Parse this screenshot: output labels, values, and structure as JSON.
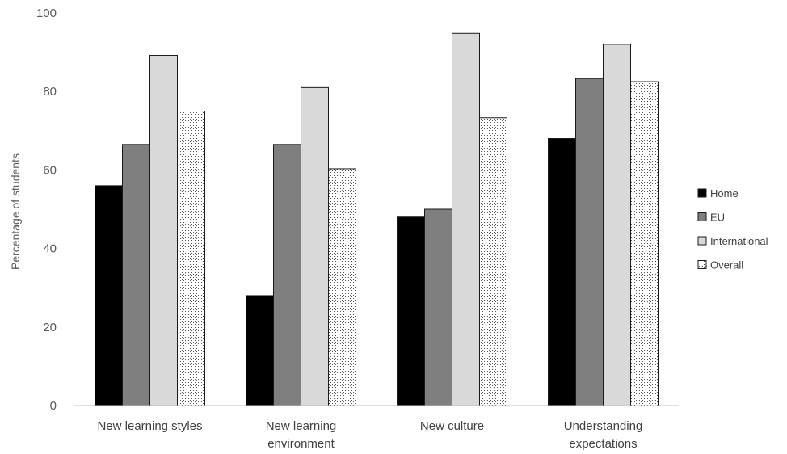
{
  "chart_data": {
    "type": "bar",
    "title": "",
    "xlabel": "",
    "ylabel": "Percentage of students",
    "ylim": [
      0,
      100
    ],
    "yticks": [
      0,
      20,
      40,
      60,
      80,
      100
    ],
    "grid": false,
    "legend_position": "right",
    "categories": [
      [
        "New learning styles"
      ],
      [
        "New learning",
        "environment"
      ],
      [
        "New culture"
      ],
      [
        "Understanding",
        "expectations"
      ]
    ],
    "series": [
      {
        "name": "Home",
        "values": [
          56,
          28,
          48,
          68
        ],
        "color": "#000000",
        "pattern": "solid"
      },
      {
        "name": "EU",
        "values": [
          66.5,
          66.5,
          50,
          83.3
        ],
        "color": "#7f7f7f",
        "pattern": "solid"
      },
      {
        "name": "International",
        "values": [
          89.2,
          81,
          94.8,
          92
        ],
        "color": "#d9d9d9",
        "pattern": "solid"
      },
      {
        "name": "Overall",
        "values": [
          75,
          60.3,
          73.3,
          82.5
        ],
        "color": "#ffffff",
        "pattern": "dotted"
      }
    ]
  }
}
